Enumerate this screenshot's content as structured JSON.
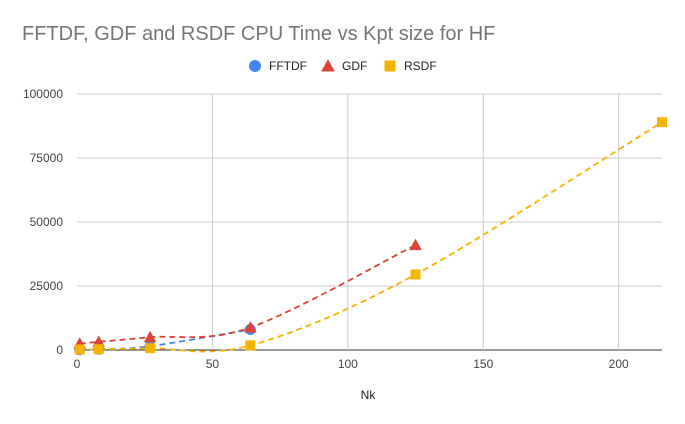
{
  "chart_data": {
    "type": "scatter",
    "title": "FFTDF, GDF and RSDF CPU Time vs Kpt size for HF",
    "xlabel": "Nk",
    "ylabel": "",
    "xlim": [
      0,
      216
    ],
    "ylim": [
      0,
      100000
    ],
    "x_ticks": [
      "0",
      "50",
      "100",
      "150",
      "200"
    ],
    "y_ticks": [
      "0",
      "25000",
      "50000",
      "75000",
      "100000"
    ],
    "grid": true,
    "legend_position": "top",
    "series": [
      {
        "name": "FFTDF",
        "marker": "circle",
        "color": "#4285f4",
        "trendline": "dashed",
        "points": [
          [
            1,
            100
          ],
          [
            8,
            300
          ],
          [
            27,
            1500
          ],
          [
            64,
            8000
          ]
        ]
      },
      {
        "name": "GDF",
        "marker": "triangle",
        "color": "#db4437",
        "trendline": "dashed",
        "points": [
          [
            1,
            2500
          ],
          [
            8,
            3200
          ],
          [
            27,
            5000
          ],
          [
            64,
            8800
          ],
          [
            125,
            41000
          ]
        ]
      },
      {
        "name": "RSDF",
        "marker": "square",
        "color": "#f4b400",
        "trendline": "dashed",
        "points": [
          [
            1,
            200
          ],
          [
            8,
            300
          ],
          [
            27,
            700
          ],
          [
            64,
            1800
          ],
          [
            125,
            29500
          ],
          [
            216,
            89000
          ]
        ]
      }
    ]
  }
}
